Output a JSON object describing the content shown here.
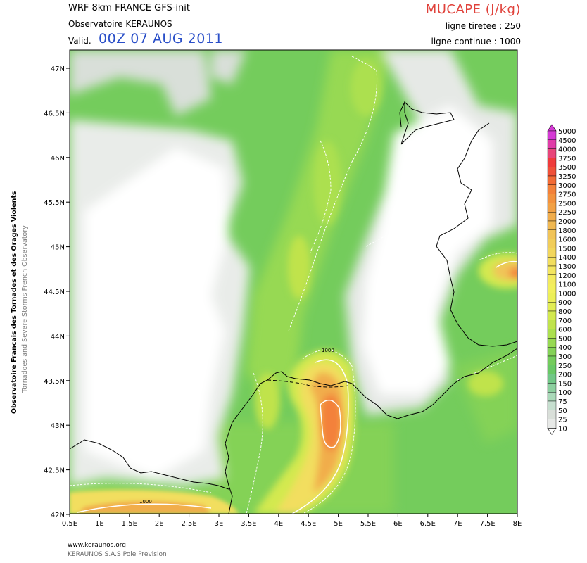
{
  "header": {
    "model": "WRF 8km FRANCE  GFS-init",
    "observatory": "Observatoire KERAUNOS",
    "valid_label": "Valid.",
    "valid_time": "00Z 07 AUG 2011",
    "parameter": "MUCAPE (J/kg)",
    "dashed_contour": "ligne tiretee : 250",
    "solid_contour": "ligne continue : 1000"
  },
  "side_titles": {
    "line1": "Observatoire Francais des Tornades et des Orages Violents",
    "line2": "Tornadoes and Severe Storms French Observatory"
  },
  "map": {
    "lat_labels": [
      "47N",
      "46.5N",
      "46N",
      "45.5N",
      "45N",
      "44.5N",
      "44N",
      "43.5N",
      "43N",
      "42.5N",
      "42N"
    ],
    "lon_labels": [
      "0.5E",
      "1E",
      "1.5E",
      "2E",
      "2.5E",
      "3E",
      "3.5E",
      "4E",
      "4.5E",
      "5E",
      "5.5E",
      "6E",
      "6.5E",
      "7E",
      "7.5E",
      "8E"
    ],
    "contour_labels": [
      "1000",
      "1000"
    ]
  },
  "legend": {
    "levels": [
      "5000",
      "4500",
      "4000",
      "3750",
      "3500",
      "3250",
      "3000",
      "2750",
      "2500",
      "2250",
      "2000",
      "1800",
      "1600",
      "1500",
      "1400",
      "1300",
      "1200",
      "1100",
      "1000",
      "900",
      "800",
      "700",
      "600",
      "500",
      "400",
      "300",
      "250",
      "200",
      "150",
      "100",
      "75",
      "50",
      "25",
      "10"
    ],
    "colors": [
      "#d53ad5",
      "#e03ca8",
      "#e8457a",
      "#ef3b3b",
      "#f05038",
      "#f26a35",
      "#f3813a",
      "#f3923e",
      "#f2a145",
      "#f1ad4c",
      "#f0b852",
      "#f1c458",
      "#f1cd5a",
      "#f2d65c",
      "#f2de5e",
      "#f3e560",
      "#f3ea5e",
      "#f2ef5c",
      "#ecef58",
      "#e2ed55",
      "#d3e94f",
      "#c0e34c",
      "#ace04f",
      "#97d952",
      "#84d257",
      "#74cc5c",
      "#69c866",
      "#71c787",
      "#8ccf9f",
      "#aad9b9",
      "#c6dfcf",
      "#d9dfd9",
      "#e7e9e7",
      "#ffffff"
    ]
  },
  "footer": {
    "url": "www.keraunos.org",
    "org": "KERAUNOS S.A.S Pole Prevision"
  }
}
